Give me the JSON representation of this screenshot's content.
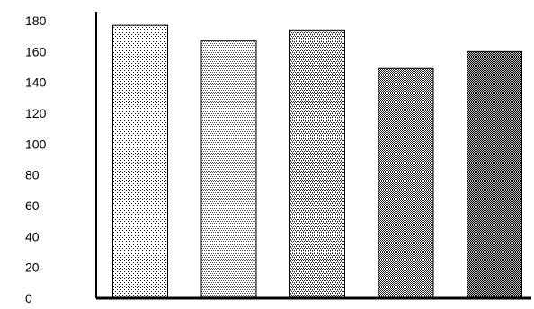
{
  "chart_data": {
    "type": "bar",
    "categories": [
      "",
      "",
      "",
      "",
      ""
    ],
    "values": [
      177,
      167,
      174,
      149,
      160
    ],
    "title": "",
    "xlabel": "",
    "ylabel": "",
    "ylim": [
      0,
      180
    ],
    "yticks": [
      0,
      20,
      40,
      60,
      80,
      100,
      120,
      140,
      160,
      180
    ],
    "grid": false,
    "legend": "none",
    "bar_fills": [
      "sparse-dots",
      "light-crosshatch",
      "medium-crosshatch",
      "dense-crosshatch",
      "darkest-crosshatch"
    ]
  }
}
